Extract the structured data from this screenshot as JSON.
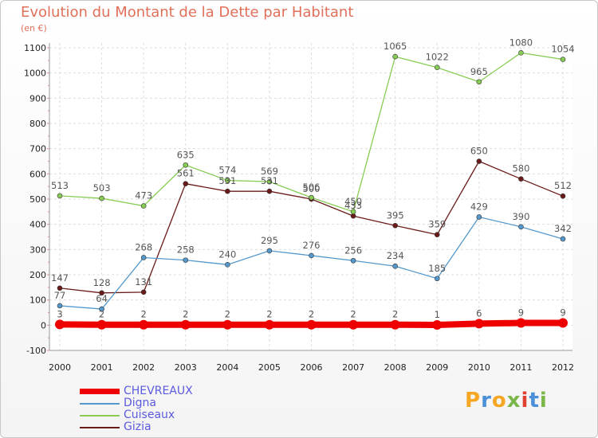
{
  "title": "Evolution du Montant de la Dette par Habitant",
  "subtitle": "(en €)",
  "logo_text": "Proxiti",
  "logo_colors": [
    "#f5a623",
    "#4a90d9",
    "#f5a623",
    "#7ab648",
    "#e04030",
    "#4a90d9",
    "#7ab648"
  ],
  "chart_data": {
    "type": "line",
    "x": [
      "2000",
      "2001",
      "2002",
      "2003",
      "2004",
      "2005",
      "2006",
      "2007",
      "2008",
      "2009",
      "2010",
      "2011",
      "2012"
    ],
    "ylim": [
      -100,
      1100
    ],
    "yticks": [
      -100,
      0,
      100,
      200,
      300,
      400,
      500,
      600,
      700,
      800,
      900,
      1000,
      1100
    ],
    "legend_position": "bottom-left",
    "series": [
      {
        "name": "Gizia",
        "color": "#6b1a1a",
        "values": [
          147,
          128,
          131,
          561,
          531,
          531,
          500,
          433,
          395,
          359,
          650,
          580,
          512
        ],
        "labels": [
          "147",
          "128",
          "131",
          "561",
          "531",
          "531",
          "500",
          "433",
          "395",
          "359",
          "650",
          "580",
          "512"
        ]
      },
      {
        "name": "Cuiseaux",
        "color": "#88cc55",
        "values": [
          513,
          503,
          473,
          635,
          574,
          569,
          506,
          450,
          1065,
          1022,
          965,
          1080,
          1054
        ],
        "labels": [
          "513",
          "503",
          "473",
          "635",
          "574",
          "569",
          "506",
          "450",
          "1065",
          "1022",
          "965",
          "1080",
          "1054"
        ]
      },
      {
        "name": "Digna",
        "color": "#5599cc",
        "values": [
          77,
          64,
          268,
          258,
          240,
          295,
          276,
          256,
          234,
          185,
          429,
          390,
          342
        ],
        "labels": [
          "77",
          "64",
          "268",
          "258",
          "240",
          "295",
          "276",
          "256",
          "234",
          "185",
          "429",
          "390",
          "342"
        ]
      },
      {
        "name": "CHEVREAUX",
        "color": "#ee0000",
        "values": [
          3,
          2,
          2,
          2,
          2,
          2,
          2,
          2,
          2,
          1,
          6,
          9,
          9
        ],
        "labels": [
          "3",
          "2",
          "2",
          "2",
          "2",
          "2",
          "2",
          "2",
          "2",
          "1",
          "6",
          "9",
          "9"
        ]
      }
    ],
    "legend": [
      "CHEVREAUX",
      "Digna",
      "Cuiseaux",
      "Gizia"
    ]
  }
}
